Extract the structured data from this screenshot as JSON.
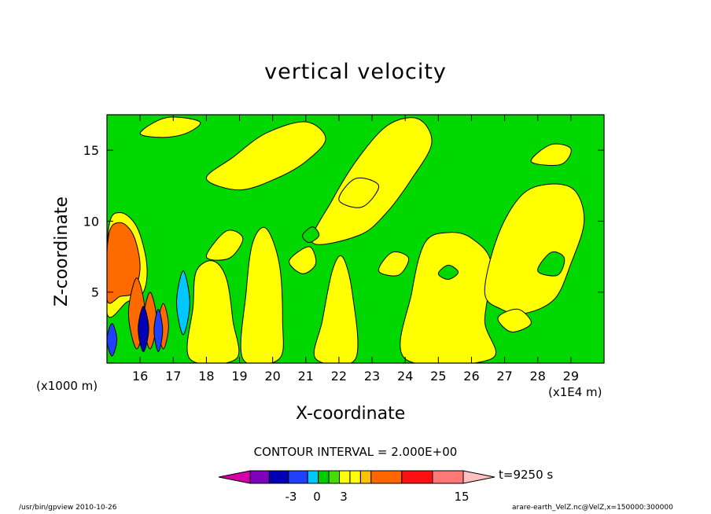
{
  "title": "vertical velocity",
  "x_unit_label": "(x1000 m)",
  "x_unit_label_2": "(x1E4 m)",
  "footer_left": "/usr/bin/gpview  2010-10-26",
  "footer_right": "arare-earth_VelZ.nc@VelZ,x=150000:300000",
  "contour_interval": "CONTOUR INTERVAL = 2.000E+00",
  "time_label": "t=9250 s",
  "chart_data": {
    "type": "heatmap",
    "title": "vertical velocity",
    "xlabel": "X-coordinate",
    "ylabel": "Z-coordinate",
    "xlim": [
      15.0,
      30.0
    ],
    "ylim": [
      0.0,
      17.5
    ],
    "x_ticks": [
      "16",
      "17",
      "18",
      "19",
      "20",
      "21",
      "22",
      "23",
      "24",
      "25",
      "26",
      "27",
      "28",
      "29"
    ],
    "y_ticks": [
      "5",
      "10",
      "15"
    ],
    "colorbar": {
      "levels": [
        -9,
        -7,
        -5,
        -3,
        -1,
        0,
        1,
        3,
        5,
        7,
        9,
        11,
        13
      ],
      "tick_labels": [
        "-3",
        "0",
        "3",
        "15"
      ],
      "colors": [
        "#d700a8",
        "#7e00bd",
        "#0000b8",
        "#1f40ff",
        "#00c8ff",
        "#00cc00",
        "#44dd00",
        "#ffff00",
        "#ffff00",
        "#ffc000",
        "#ff6600",
        "#ff1010",
        "#ff7878",
        "#ffc0c0"
      ]
    },
    "regions": [
      {
        "value": "yellow-band",
        "x": [
          17.5,
          18.8
        ],
        "y": [
          0.2,
          7.0
        ]
      },
      {
        "value": "yellow-band",
        "x": [
          19.2,
          20.2
        ],
        "y": [
          0.2,
          8.0
        ]
      },
      {
        "value": "yellow-band",
        "x": [
          21.5,
          22.4
        ],
        "y": [
          0.2,
          6.5
        ]
      },
      {
        "value": "yellow-band",
        "x": [
          24.0,
          26.5
        ],
        "y": [
          0.2,
          8.5
        ]
      },
      {
        "value": "yellow-band",
        "x": [
          26.5,
          29.3
        ],
        "y": [
          3.0,
          12.5
        ]
      },
      {
        "value": "orange-max",
        "x": [
          15.0,
          15.9
        ],
        "y": [
          5.0,
          10.0
        ]
      }
    ]
  }
}
